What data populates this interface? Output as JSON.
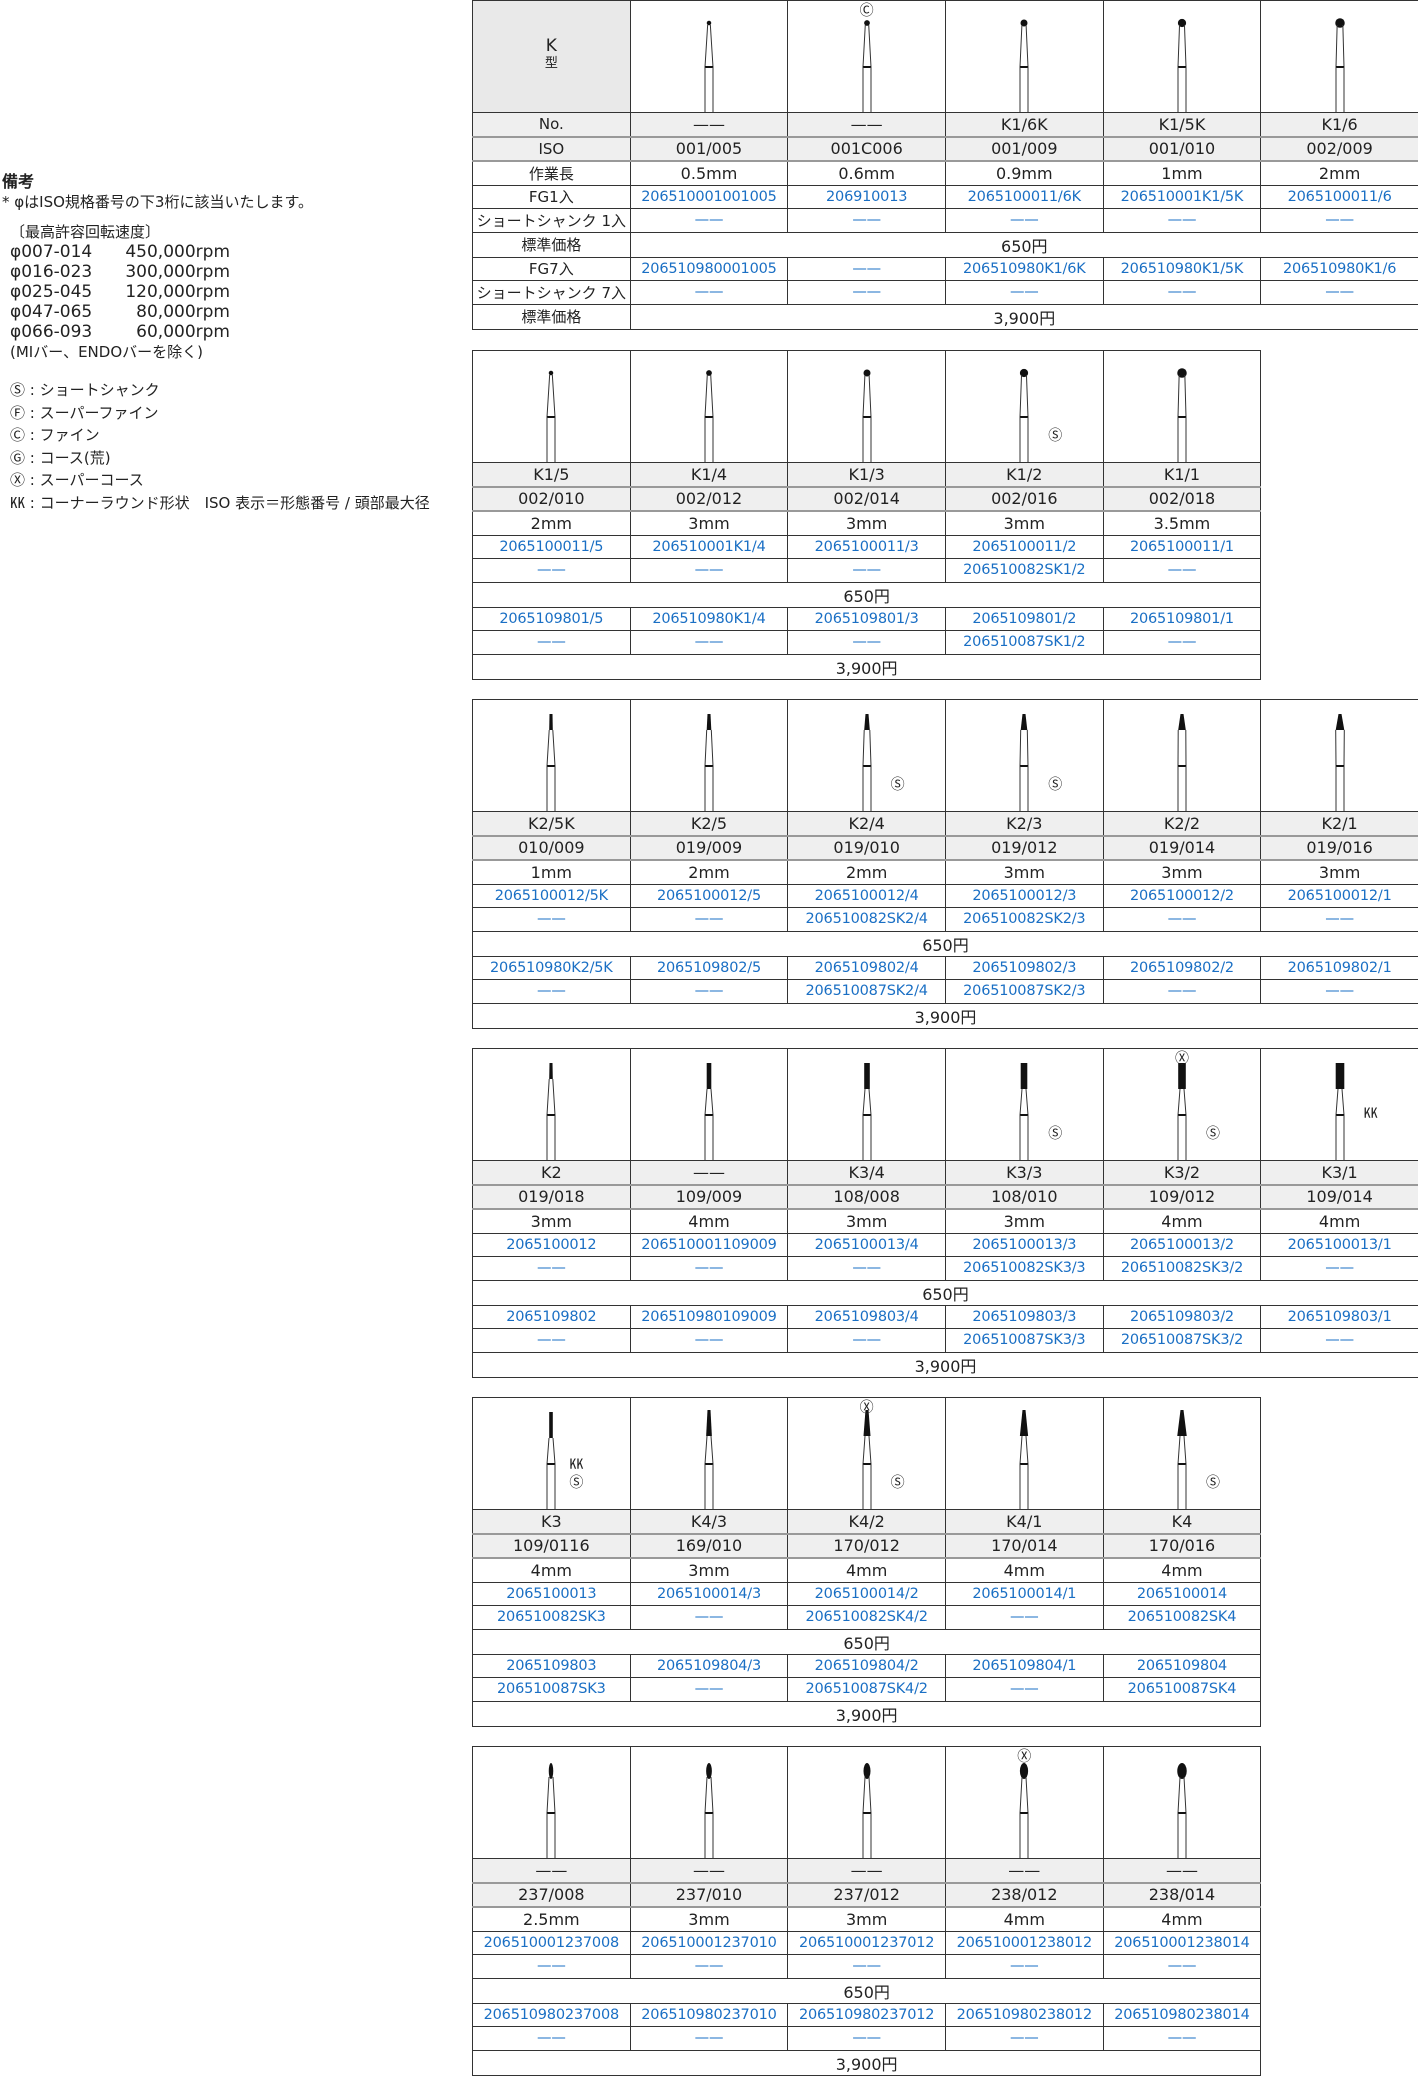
{
  "notes": {
    "heading": "備考",
    "note": "* φはISO規格番号の下3桁に該当いたします。",
    "speed_title": "〔最高許容回転速度〕",
    "speeds": [
      {
        "range": "φ007-014",
        "rpm": "450,000rpm"
      },
      {
        "range": "φ016-023",
        "rpm": "300,000rpm"
      },
      {
        "range": "φ025-045",
        "rpm": "120,000rpm"
      },
      {
        "range": "φ047-065",
        "rpm": "80,000rpm"
      },
      {
        "range": "φ066-093",
        "rpm": "60,000rpm"
      }
    ],
    "exclusion": "(MIバー、ENDOバーを除く)",
    "legend": [
      "Ⓢ : ショートシャンク",
      "Ⓕ : スーパーファイン",
      "Ⓒ : ファイン",
      "Ⓖ : コース(荒)",
      "Ⓧ : スーパーコース",
      "㏍ : コーナーラウンド形状　ISO 表示＝形態番号 / 頭部最大径"
    ]
  },
  "header_label": {
    "type": "K",
    "type_suffix": "型"
  },
  "row_labels": [
    "No.",
    "ISO",
    "作業長",
    "FG1入",
    "ショートシャンク 1入",
    "標準価格",
    "FG7入",
    "ショートシャンク 7入",
    "標準価格"
  ],
  "accent_color": "#1a6fc4",
  "tables": [
    {
      "price1": "650円",
      "price7": "3,900円",
      "cols": [
        {
          "no": "——",
          "iso": "001/005",
          "len": "0.5mm",
          "fg1": "206510001001005",
          "s1": "——",
          "fg7": "206510980001005",
          "s7": "——",
          "shape": "round",
          "badges": []
        },
        {
          "no": "——",
          "iso": "001C006",
          "len": "0.6mm",
          "fg1": "206910013",
          "s1": "——",
          "fg7": "——",
          "s7": "——",
          "shape": "round",
          "badges": [
            "Ⓒ"
          ]
        },
        {
          "no": "K1/6K",
          "iso": "001/009",
          "len": "0.9mm",
          "fg1": "2065100011/6K",
          "s1": "——",
          "fg7": "206510980K1/6K",
          "s7": "——",
          "shape": "round",
          "badges": []
        },
        {
          "no": "K1/5K",
          "iso": "001/010",
          "len": "1mm",
          "fg1": "206510001K1/5K",
          "s1": "——",
          "fg7": "206510980K1/5K",
          "s7": "——",
          "shape": "round",
          "badges": []
        },
        {
          "no": "K1/6",
          "iso": "002/009",
          "len": "2mm",
          "fg1": "2065100011/6",
          "s1": "——",
          "fg7": "206510980K1/6",
          "s7": "——",
          "shape": "round",
          "badges": []
        }
      ]
    },
    {
      "price1": "650円",
      "price7": "3,900円",
      "cols": [
        {
          "no": "K1/5",
          "iso": "002/010",
          "len": "2mm",
          "fg1": "2065100011/5",
          "s1": "——",
          "fg7": "2065109801/5",
          "s7": "——",
          "shape": "round",
          "badges": []
        },
        {
          "no": "K1/4",
          "iso": "002/012",
          "len": "3mm",
          "fg1": "206510001K1/4",
          "s1": "——",
          "fg7": "206510980K1/4",
          "s7": "——",
          "shape": "round",
          "badges": []
        },
        {
          "no": "K1/3",
          "iso": "002/014",
          "len": "3mm",
          "fg1": "2065100011/3",
          "s1": "——",
          "fg7": "2065109801/3",
          "s7": "——",
          "shape": "round",
          "badges": []
        },
        {
          "no": "K1/2",
          "iso": "002/016",
          "len": "3mm",
          "fg1": "2065100011/2",
          "s1": "206510082SK1/2",
          "fg7": "2065109801/2",
          "s7": "206510087SK1/2",
          "shape": "round",
          "badges": [
            "Ⓢ"
          ]
        },
        {
          "no": "K1/1",
          "iso": "002/018",
          "len": "3.5mm",
          "fg1": "2065100011/1",
          "s1": "——",
          "fg7": "2065109801/1",
          "s7": "——",
          "shape": "round",
          "badges": []
        }
      ]
    },
    {
      "price1": "650円",
      "price7": "3,900円",
      "cols": [
        {
          "no": "K2/5K",
          "iso": "010/009",
          "len": "1mm",
          "fg1": "2065100012/5K",
          "s1": "——",
          "fg7": "206510980K2/5K",
          "s7": "——",
          "shape": "cone",
          "badges": []
        },
        {
          "no": "K2/5",
          "iso": "019/009",
          "len": "2mm",
          "fg1": "2065100012/5",
          "s1": "——",
          "fg7": "2065109802/5",
          "s7": "——",
          "shape": "cone",
          "badges": []
        },
        {
          "no": "K2/4",
          "iso": "019/010",
          "len": "2mm",
          "fg1": "2065100012/4",
          "s1": "206510082SK2/4",
          "fg7": "2065109802/4",
          "s7": "206510087SK2/4",
          "shape": "cone",
          "badges": [
            "Ⓢ"
          ]
        },
        {
          "no": "K2/3",
          "iso": "019/012",
          "len": "3mm",
          "fg1": "2065100012/3",
          "s1": "206510082SK2/3",
          "fg7": "2065109802/3",
          "s7": "206510087SK2/3",
          "shape": "cone",
          "badges": [
            "Ⓢ"
          ]
        },
        {
          "no": "K2/2",
          "iso": "019/014",
          "len": "3mm",
          "fg1": "2065100012/2",
          "s1": "——",
          "fg7": "2065109802/2",
          "s7": "——",
          "shape": "cone",
          "badges": []
        },
        {
          "no": "K2/1",
          "iso": "019/016",
          "len": "3mm",
          "fg1": "2065100012/1",
          "s1": "——",
          "fg7": "2065109802/1",
          "s7": "——",
          "shape": "cone",
          "badges": []
        }
      ]
    },
    {
      "price1": "650円",
      "price7": "3,900円",
      "cols": [
        {
          "no": "K2",
          "iso": "019/018",
          "len": "3mm",
          "fg1": "2065100012",
          "s1": "——",
          "fg7": "2065109802",
          "s7": "——",
          "shape": "cone",
          "badges": []
        },
        {
          "no": "——",
          "iso": "109/009",
          "len": "4mm",
          "fg1": "206510001109009",
          "s1": "——",
          "fg7": "206510980109009",
          "s7": "——",
          "shape": "cylinder",
          "badges": []
        },
        {
          "no": "K3/4",
          "iso": "108/008",
          "len": "3mm",
          "fg1": "2065100013/4",
          "s1": "——",
          "fg7": "2065109803/4",
          "s7": "——",
          "shape": "cylinder",
          "badges": []
        },
        {
          "no": "K3/3",
          "iso": "108/010",
          "len": "3mm",
          "fg1": "2065100013/3",
          "s1": "206510082SK3/3",
          "fg7": "2065109803/3",
          "s7": "206510087SK3/3",
          "shape": "cylinder",
          "badges": [
            "Ⓢ"
          ]
        },
        {
          "no": "K3/2",
          "iso": "109/012",
          "len": "4mm",
          "fg1": "2065100013/2",
          "s1": "206510082SK3/2",
          "fg7": "2065109803/2",
          "s7": "206510087SK3/2",
          "shape": "cylinder",
          "badges": [
            "Ⓧ",
            "Ⓢ"
          ]
        },
        {
          "no": "K3/1",
          "iso": "109/014",
          "len": "4mm",
          "fg1": "2065100013/1",
          "s1": "——",
          "fg7": "2065109803/1",
          "s7": "——",
          "shape": "cylinder",
          "badges": [
            "㏍"
          ]
        }
      ]
    },
    {
      "price1": "650円",
      "price7": "3,900円",
      "cols": [
        {
          "no": "K3",
          "iso": "109/0116",
          "len": "4mm",
          "fg1": "2065100013",
          "s1": "206510082SK3",
          "fg7": "2065109803",
          "s7": "206510087SK3",
          "shape": "cylinder",
          "badges": [
            "㏍",
            "Ⓢ"
          ]
        },
        {
          "no": "K4/3",
          "iso": "169/010",
          "len": "3mm",
          "fg1": "2065100014/3",
          "s1": "——",
          "fg7": "2065109804/3",
          "s7": "——",
          "shape": "taper",
          "badges": []
        },
        {
          "no": "K4/2",
          "iso": "170/012",
          "len": "4mm",
          "fg1": "2065100014/2",
          "s1": "206510082SK4/2",
          "fg7": "2065109804/2",
          "s7": "206510087SK4/2",
          "shape": "taper",
          "badges": [
            "Ⓧ",
            "Ⓢ"
          ]
        },
        {
          "no": "K4/1",
          "iso": "170/014",
          "len": "4mm",
          "fg1": "2065100014/1",
          "s1": "——",
          "fg7": "2065109804/1",
          "s7": "——",
          "shape": "taper",
          "badges": []
        },
        {
          "no": "K4",
          "iso": "170/016",
          "len": "4mm",
          "fg1": "2065100014",
          "s1": "206510082SK4",
          "fg7": "2065109804",
          "s7": "206510087SK4",
          "shape": "taper",
          "badges": [
            "Ⓢ"
          ]
        }
      ]
    },
    {
      "price1": "650円",
      "price7": "3,900円",
      "cols": [
        {
          "no": "——",
          "iso": "237/008",
          "len": "2.5mm",
          "fg1": "206510001237008",
          "s1": "——",
          "fg7": "206510980237008",
          "s7": "——",
          "shape": "pear",
          "badges": []
        },
        {
          "no": "——",
          "iso": "237/010",
          "len": "3mm",
          "fg1": "206510001237010",
          "s1": "——",
          "fg7": "206510980237010",
          "s7": "——",
          "shape": "pear",
          "badges": []
        },
        {
          "no": "——",
          "iso": "237/012",
          "len": "3mm",
          "fg1": "206510001237012",
          "s1": "——",
          "fg7": "206510980237012",
          "s7": "——",
          "shape": "pear",
          "badges": []
        },
        {
          "no": "——",
          "iso": "238/012",
          "len": "4mm",
          "fg1": "206510001238012",
          "s1": "——",
          "fg7": "206510980238012",
          "s7": "——",
          "shape": "pear",
          "badges": [
            "Ⓧ"
          ]
        },
        {
          "no": "——",
          "iso": "238/014",
          "len": "4mm",
          "fg1": "206510001238014",
          "s1": "——",
          "fg7": "206510980238014",
          "s7": "——",
          "shape": "pear",
          "badges": []
        }
      ]
    }
  ]
}
